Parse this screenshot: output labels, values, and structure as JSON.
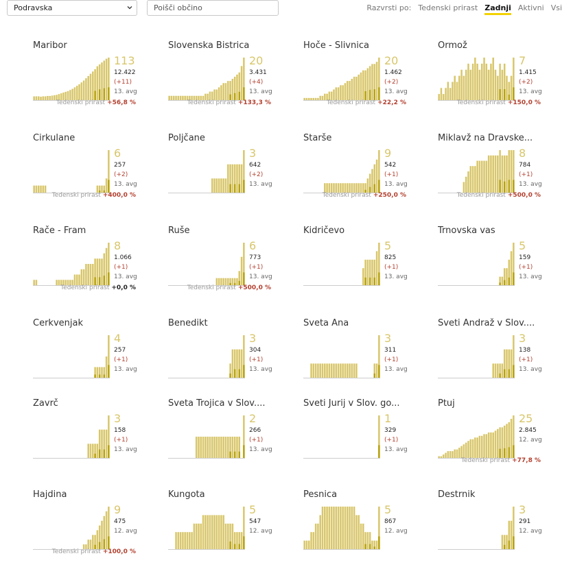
{
  "controls": {
    "region_select": "Podravska",
    "search_placeholder": "Poišči občino",
    "sort_label": "Razvrsti po:",
    "sort_options": [
      "Tedenski prirast",
      "Zadnji",
      "Aktivni",
      "Vsi"
    ],
    "sort_active": 1
  },
  "colors": {
    "bar_light": "#d8c66a",
    "bar_dark": "#b8a20c",
    "axis": "#cccccc",
    "positive": "#b3402f"
  },
  "weekly_label": "Tedenski prirast",
  "chart_data": [
    {
      "type": "bar",
      "title": "Maribor",
      "latest": "113",
      "total": "12.422",
      "delta": "(+11)",
      "date": "13. avg",
      "weekly": "+56,8 %",
      "values": [
        10,
        10,
        10,
        9,
        10,
        10,
        11,
        11,
        12,
        13,
        14,
        16,
        18,
        20,
        22,
        24,
        27,
        30,
        34,
        38,
        42,
        47,
        52,
        58,
        64,
        70,
        76,
        82,
        90,
        95,
        100,
        105,
        110,
        113
      ]
    },
    {
      "type": "bar",
      "title": "Slovenska Bistrica",
      "latest": "20",
      "total": "3.431",
      "delta": "(+4)",
      "date": "13. avg",
      "weekly": "+133,3 %",
      "values": [
        2,
        2,
        2,
        2,
        2,
        2,
        2,
        2,
        2,
        2,
        2,
        2,
        2,
        2,
        2,
        2,
        3,
        3,
        4,
        4,
        5,
        5,
        6,
        7,
        8,
        8,
        9,
        9,
        10,
        11,
        12,
        13,
        16,
        20
      ]
    },
    {
      "type": "bar",
      "title": "Hoče - Slivnica",
      "latest": "20",
      "total": "1.462",
      "delta": "(+2)",
      "date": "13. avg",
      "weekly": "+22,2 %",
      "values": [
        1,
        1,
        1,
        1,
        1,
        1,
        1,
        2,
        2,
        3,
        3,
        4,
        4,
        5,
        6,
        6,
        7,
        7,
        8,
        9,
        9,
        10,
        11,
        11,
        12,
        13,
        14,
        14,
        15,
        16,
        17,
        17,
        18,
        20
      ]
    },
    {
      "type": "bar",
      "title": "Ormož",
      "latest": "7",
      "total": "1.415",
      "delta": "(+2)",
      "date": "13. avg",
      "weekly": "+150,0 %",
      "values": [
        1,
        2,
        1,
        2,
        3,
        2,
        3,
        4,
        3,
        4,
        5,
        4,
        5,
        6,
        5,
        6,
        7,
        6,
        5,
        6,
        7,
        6,
        5,
        6,
        7,
        5,
        4,
        6,
        5,
        6,
        4,
        3,
        4,
        7
      ]
    },
    {
      "type": "bar",
      "title": "Cirkulane",
      "latest": "6",
      "total": "257",
      "delta": "(+2)",
      "date": "13. avg",
      "weekly": "+400,0 %",
      "values": [
        1,
        1,
        1,
        1,
        1,
        1,
        0,
        0,
        0,
        0,
        0,
        0,
        0,
        0,
        0,
        0,
        0,
        0,
        0,
        0,
        0,
        0,
        0,
        0,
        0,
        0,
        0,
        0,
        1,
        1,
        1,
        1,
        2,
        6
      ]
    },
    {
      "type": "bar",
      "title": "Poljčane",
      "latest": "3",
      "total": "642",
      "delta": "(+2)",
      "date": "13. avg",
      "weekly": "",
      "values": [
        0,
        0,
        0,
        0,
        0,
        0,
        0,
        0,
        0,
        0,
        0,
        0,
        0,
        0,
        0,
        0,
        0,
        0,
        0,
        1,
        1,
        1,
        1,
        1,
        1,
        1,
        2,
        2,
        2,
        2,
        2,
        2,
        2,
        3
      ]
    },
    {
      "type": "bar",
      "title": "Starše",
      "latest": "9",
      "total": "542",
      "delta": "(+1)",
      "date": "13. avg",
      "weekly": "+250,0 %",
      "values": [
        0,
        0,
        0,
        0,
        0,
        0,
        0,
        0,
        0,
        2,
        2,
        2,
        2,
        2,
        2,
        2,
        2,
        2,
        2,
        2,
        2,
        2,
        2,
        2,
        2,
        2,
        2,
        2,
        3,
        4,
        5,
        6,
        7,
        9
      ]
    },
    {
      "type": "bar",
      "title": "Miklavž na Dravske...",
      "latest": "8",
      "total": "784",
      "delta": "(+1)",
      "date": "13. avg",
      "weekly": "+500,0 %",
      "values": [
        0,
        0,
        0,
        0,
        0,
        0,
        0,
        0,
        0,
        0,
        0,
        2,
        3,
        4,
        5,
        5,
        5,
        6,
        6,
        6,
        6,
        6,
        7,
        7,
        7,
        7,
        7,
        8,
        7,
        7,
        7,
        8,
        8,
        8
      ]
    },
    {
      "type": "bar",
      "title": "Rače - Fram",
      "latest": "8",
      "total": "1.066",
      "delta": "(+1)",
      "date": "13. avg",
      "weekly": "+0,0 %",
      "values": [
        1,
        1,
        0,
        0,
        0,
        0,
        0,
        0,
        0,
        0,
        1,
        1,
        1,
        1,
        1,
        1,
        1,
        1,
        2,
        2,
        2,
        3,
        3,
        4,
        4,
        4,
        4,
        5,
        5,
        5,
        5,
        6,
        7,
        8
      ]
    },
    {
      "type": "bar",
      "title": "Ruše",
      "latest": "6",
      "total": "773",
      "delta": "(+1)",
      "date": "13. avg",
      "weekly": "+500,0 %",
      "values": [
        0,
        0,
        0,
        0,
        0,
        0,
        0,
        0,
        0,
        0,
        0,
        0,
        0,
        0,
        0,
        0,
        0,
        0,
        0,
        0,
        0,
        1,
        1,
        1,
        1,
        1,
        1,
        1,
        1,
        1,
        1,
        2,
        4,
        6
      ]
    },
    {
      "type": "bar",
      "title": "Kidričevo",
      "latest": "5",
      "total": "825",
      "delta": "(+1)",
      "date": "13. avg",
      "weekly": "",
      "values": [
        0,
        0,
        0,
        0,
        0,
        0,
        0,
        0,
        0,
        0,
        0,
        0,
        0,
        0,
        0,
        0,
        0,
        0,
        0,
        0,
        0,
        0,
        0,
        0,
        0,
        0,
        2,
        3,
        3,
        3,
        3,
        3,
        4,
        5
      ]
    },
    {
      "type": "bar",
      "title": "Trnovska vas",
      "latest": "5",
      "total": "159",
      "delta": "(+1)",
      "date": "13. avg",
      "weekly": "",
      "values": [
        0,
        0,
        0,
        0,
        0,
        0,
        0,
        0,
        0,
        0,
        0,
        0,
        0,
        0,
        0,
        0,
        0,
        0,
        0,
        0,
        0,
        0,
        0,
        0,
        0,
        0,
        0,
        1,
        1,
        2,
        2,
        3,
        4,
        5
      ]
    },
    {
      "type": "bar",
      "title": "Cerkvenjak",
      "latest": "4",
      "total": "257",
      "delta": "(+1)",
      "date": "13. avg",
      "weekly": "",
      "values": [
        0,
        0,
        0,
        0,
        0,
        0,
        0,
        0,
        0,
        0,
        0,
        0,
        0,
        0,
        0,
        0,
        0,
        0,
        0,
        0,
        0,
        0,
        0,
        0,
        0,
        0,
        0,
        1,
        1,
        1,
        1,
        1,
        2,
        4
      ]
    },
    {
      "type": "bar",
      "title": "Benedikt",
      "latest": "3",
      "total": "304",
      "delta": "(+1)",
      "date": "13. avg",
      "weekly": "",
      "values": [
        0,
        0,
        0,
        0,
        0,
        0,
        0,
        0,
        0,
        0,
        0,
        0,
        0,
        0,
        0,
        0,
        0,
        0,
        0,
        0,
        0,
        0,
        0,
        0,
        0,
        0,
        0,
        1,
        2,
        2,
        2,
        2,
        2,
        3
      ]
    },
    {
      "type": "bar",
      "title": "Sveta Ana",
      "latest": "3",
      "total": "311",
      "delta": "(+1)",
      "date": "13. avg",
      "weekly": "",
      "values": [
        0,
        0,
        0,
        1,
        1,
        1,
        1,
        1,
        1,
        1,
        1,
        1,
        1,
        1,
        1,
        1,
        1,
        1,
        1,
        1,
        1,
        1,
        1,
        1,
        0,
        0,
        0,
        0,
        0,
        0,
        0,
        1,
        1,
        3
      ]
    },
    {
      "type": "bar",
      "title": "Sveti Andraž v Slov....",
      "latest": "3",
      "total": "138",
      "delta": "(+1)",
      "date": "13. avg",
      "weekly": "",
      "values": [
        0,
        0,
        0,
        0,
        0,
        0,
        0,
        0,
        0,
        0,
        0,
        0,
        0,
        0,
        0,
        0,
        0,
        0,
        0,
        0,
        0,
        0,
        0,
        0,
        1,
        1,
        1,
        1,
        1,
        2,
        2,
        2,
        2,
        3
      ]
    },
    {
      "type": "bar",
      "title": "Zavrč",
      "latest": "3",
      "total": "158",
      "delta": "(+1)",
      "date": "13. avg",
      "weekly": "",
      "values": [
        0,
        0,
        0,
        0,
        0,
        0,
        0,
        0,
        0,
        0,
        0,
        0,
        0,
        0,
        0,
        0,
        0,
        0,
        0,
        0,
        0,
        0,
        0,
        0,
        1,
        1,
        1,
        1,
        1,
        2,
        2,
        2,
        2,
        3
      ]
    },
    {
      "type": "bar",
      "title": "Sveta Trojica v Slov....",
      "latest": "2",
      "total": "266",
      "delta": "(+1)",
      "date": "13. avg",
      "weekly": "",
      "values": [
        0,
        0,
        0,
        0,
        0,
        0,
        0,
        0,
        0,
        0,
        0,
        0,
        1,
        1,
        1,
        1,
        1,
        1,
        1,
        1,
        1,
        1,
        1,
        1,
        1,
        1,
        1,
        1,
        1,
        1,
        1,
        1,
        0,
        2
      ]
    },
    {
      "type": "bar",
      "title": "Sveti Jurij v Slov. go...",
      "latest": "1",
      "total": "329",
      "delta": "(+1)",
      "date": "13. avg",
      "weekly": "",
      "values": [
        0,
        0,
        0,
        0,
        0,
        0,
        0,
        0,
        0,
        0,
        0,
        0,
        0,
        0,
        0,
        0,
        0,
        0,
        0,
        0,
        0,
        0,
        0,
        0,
        0,
        0,
        0,
        0,
        0,
        0,
        0,
        0,
        0,
        1
      ]
    },
    {
      "type": "bar",
      "title": "Ptuj",
      "latest": "25",
      "total": "2.845",
      "delta": "",
      "date": "12. avg",
      "weekly": "+77,8 %",
      "values": [
        1,
        1,
        2,
        3,
        4,
        4,
        4,
        5,
        5,
        6,
        7,
        8,
        9,
        10,
        11,
        11,
        12,
        12,
        13,
        13,
        14,
        14,
        15,
        15,
        15,
        16,
        17,
        18,
        18,
        19,
        20,
        21,
        23,
        25
      ]
    },
    {
      "type": "bar",
      "title": "Hajdina",
      "latest": "9",
      "total": "475",
      "delta": "",
      "date": "12. avg",
      "weekly": "+100,0 %",
      "values": [
        0,
        0,
        0,
        0,
        0,
        0,
        0,
        0,
        0,
        0,
        0,
        0,
        0,
        0,
        0,
        0,
        0,
        0,
        0,
        0,
        0,
        0,
        1,
        1,
        2,
        2,
        3,
        3,
        4,
        5,
        6,
        7,
        8,
        9
      ]
    },
    {
      "type": "bar",
      "title": "Kungota",
      "latest": "5",
      "total": "547",
      "delta": "",
      "date": "12. avg",
      "weekly": "",
      "values": [
        0,
        0,
        0,
        2,
        2,
        2,
        2,
        2,
        2,
        2,
        2,
        3,
        3,
        3,
        3,
        4,
        4,
        4,
        4,
        4,
        4,
        4,
        4,
        4,
        4,
        3,
        3,
        3,
        3,
        2,
        2,
        2,
        2,
        5
      ]
    },
    {
      "type": "bar",
      "title": "Pesnica",
      "latest": "5",
      "total": "867",
      "delta": "",
      "date": "12. avg",
      "weekly": "",
      "values": [
        1,
        1,
        1,
        2,
        2,
        3,
        3,
        4,
        5,
        5,
        5,
        5,
        5,
        5,
        5,
        5,
        5,
        5,
        5,
        5,
        5,
        5,
        5,
        4,
        4,
        3,
        3,
        2,
        2,
        2,
        1,
        1,
        1,
        5
      ]
    },
    {
      "type": "bar",
      "title": "Destrnik",
      "latest": "3",
      "total": "291",
      "delta": "",
      "date": "12. avg",
      "weekly": "",
      "values": [
        0,
        0,
        0,
        0,
        0,
        0,
        0,
        0,
        0,
        0,
        0,
        0,
        0,
        0,
        0,
        0,
        0,
        0,
        0,
        0,
        0,
        0,
        0,
        0,
        0,
        0,
        0,
        0,
        1,
        1,
        1,
        2,
        2,
        3
      ]
    }
  ]
}
